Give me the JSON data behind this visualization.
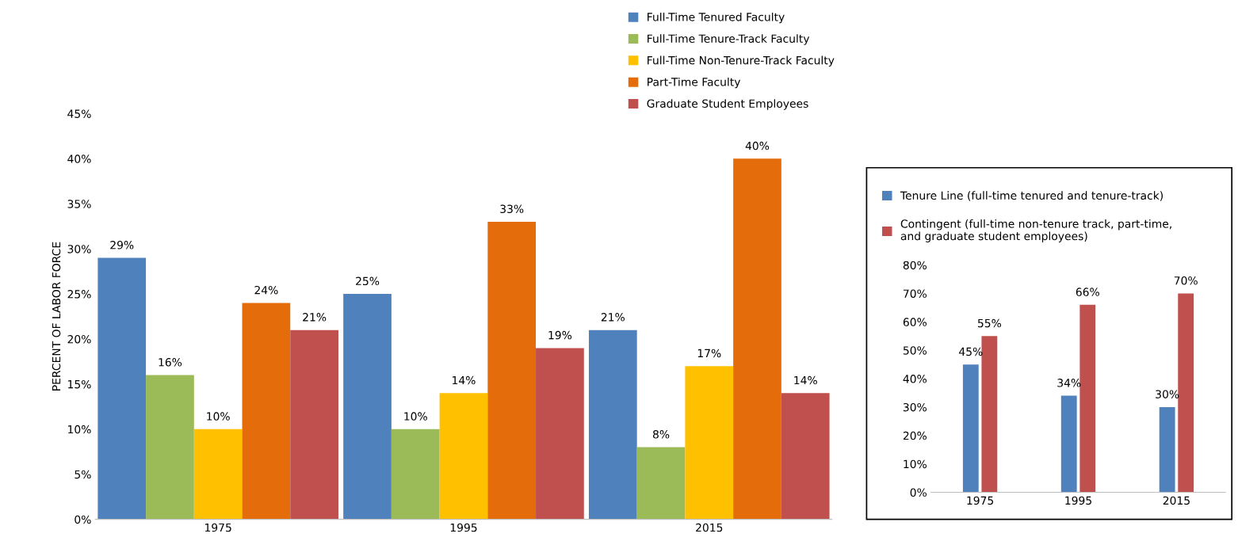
{
  "chart_data": [
    {
      "type": "bar",
      "ylabel": "PERCENT OF LABOR FORCE",
      "categories": [
        "1975",
        "1995",
        "2015"
      ],
      "ylim": [
        0,
        45
      ],
      "yticks": [
        {
          "value": 0,
          "label": "0%"
        },
        {
          "value": 5,
          "label": "5%"
        },
        {
          "value": 10,
          "label": "10%"
        },
        {
          "value": 15,
          "label": "15%"
        },
        {
          "value": 20,
          "label": "20%"
        },
        {
          "value": 25,
          "label": "25%"
        },
        {
          "value": 30,
          "label": "30%"
        },
        {
          "value": 35,
          "label": "35%"
        },
        {
          "value": 40,
          "label": "40%"
        },
        {
          "value": 45,
          "label": "45%"
        }
      ],
      "legend": "top right",
      "grid": false,
      "series": [
        {
          "name": "Full-Time Tenured Faculty",
          "color": "#4f81bd",
          "values": [
            29,
            25,
            21
          ],
          "value_labels": [
            "29%",
            "25%",
            "21%"
          ]
        },
        {
          "name": "Full-Time Tenure-Track Faculty",
          "color": "#9bbb59",
          "values": [
            16,
            10,
            8
          ],
          "value_labels": [
            "16%",
            "10%",
            "8%"
          ]
        },
        {
          "name": "Full-Time Non-Tenure-Track Faculty",
          "color": "#ffc000",
          "values": [
            10,
            14,
            17
          ],
          "value_labels": [
            "10%",
            "14%",
            "17%"
          ]
        },
        {
          "name": "Part-Time Faculty",
          "color": "#e46c0a",
          "values": [
            24,
            33,
            40
          ],
          "value_labels": [
            "24%",
            "33%",
            "40%"
          ]
        },
        {
          "name": "Graduate Student Employees",
          "color": "#c0504d",
          "values": [
            21,
            19,
            14
          ],
          "value_labels": [
            "21%",
            "19%",
            "14%"
          ]
        }
      ]
    },
    {
      "type": "bar",
      "categories": [
        "1975",
        "1995",
        "2015"
      ],
      "ylim": [
        0,
        80
      ],
      "yticks": [
        {
          "value": 0,
          "label": "0%"
        },
        {
          "value": 10,
          "label": "10%"
        },
        {
          "value": 20,
          "label": "20%"
        },
        {
          "value": 30,
          "label": "30%"
        },
        {
          "value": 40,
          "label": "40%"
        },
        {
          "value": 50,
          "label": "50%"
        },
        {
          "value": 60,
          "label": "60%"
        },
        {
          "value": 70,
          "label": "70%"
        },
        {
          "value": 80,
          "label": "80%"
        }
      ],
      "legend": "top",
      "grid": false,
      "series": [
        {
          "name": "Tenure Line (full-time tenured and tenure-track)",
          "color": "#4f81bd",
          "values": [
            45,
            34,
            30
          ],
          "value_labels": [
            "45%",
            "34%",
            "30%"
          ]
        },
        {
          "name": "Contingent (full-time non-tenure track, part-time,\nand graduate student employees)",
          "color": "#c0504d",
          "values": [
            55,
            66,
            70
          ],
          "value_labels": [
            "55%",
            "66%",
            "70%"
          ]
        }
      ]
    }
  ]
}
